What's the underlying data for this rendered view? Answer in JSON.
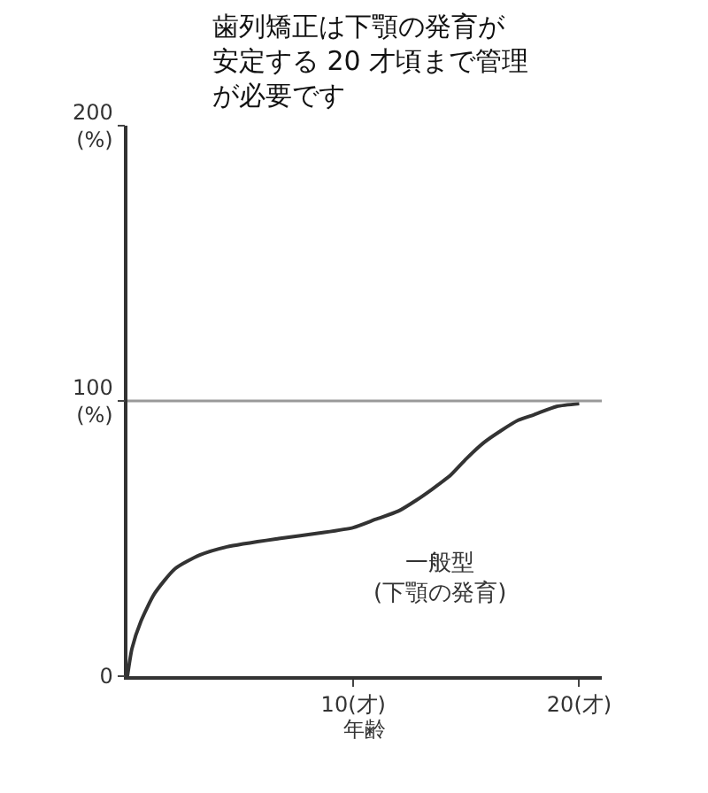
{
  "chart_data": {
    "type": "line",
    "title": "歯列矯正は下顎の発育が安定する 20 才頃まで管理が必要です",
    "xlabel": "年齢",
    "x": [
      0,
      0.2,
      0.6,
      1.2,
      2.1,
      3.2,
      4.4,
      6.7,
      8.5,
      10,
      11,
      12,
      12.8,
      13.5,
      14.3,
      15,
      15.8,
      16.5,
      17.3,
      18,
      19,
      20
    ],
    "series": [
      {
        "color": "#333333",
        "values": [
          0,
          10,
          20,
          30,
          39,
          44,
          47,
          50,
          52,
          54,
          57,
          60,
          64,
          68,
          73,
          79,
          85,
          89,
          93,
          95,
          98,
          99
        ]
      }
    ],
    "xlim": [
      0,
      21
    ],
    "ylim": [
      0,
      200
    ],
    "xticks": [
      {
        "value": 10,
        "label": "10(才)"
      },
      {
        "value": 20,
        "label": "20(才)"
      }
    ],
    "yticks": [
      0,
      {
        "value": 100,
        "label": "100\n(%)"
      },
      {
        "value": 200,
        "label": "200\n(%)"
      }
    ],
    "ref_lines": [
      {
        "axis": "y",
        "value": 100,
        "color": "#999999"
      }
    ],
    "annotations": [
      "一般型\n(下顎の発育)"
    ],
    "marker": "none",
    "line_style": "solid"
  }
}
